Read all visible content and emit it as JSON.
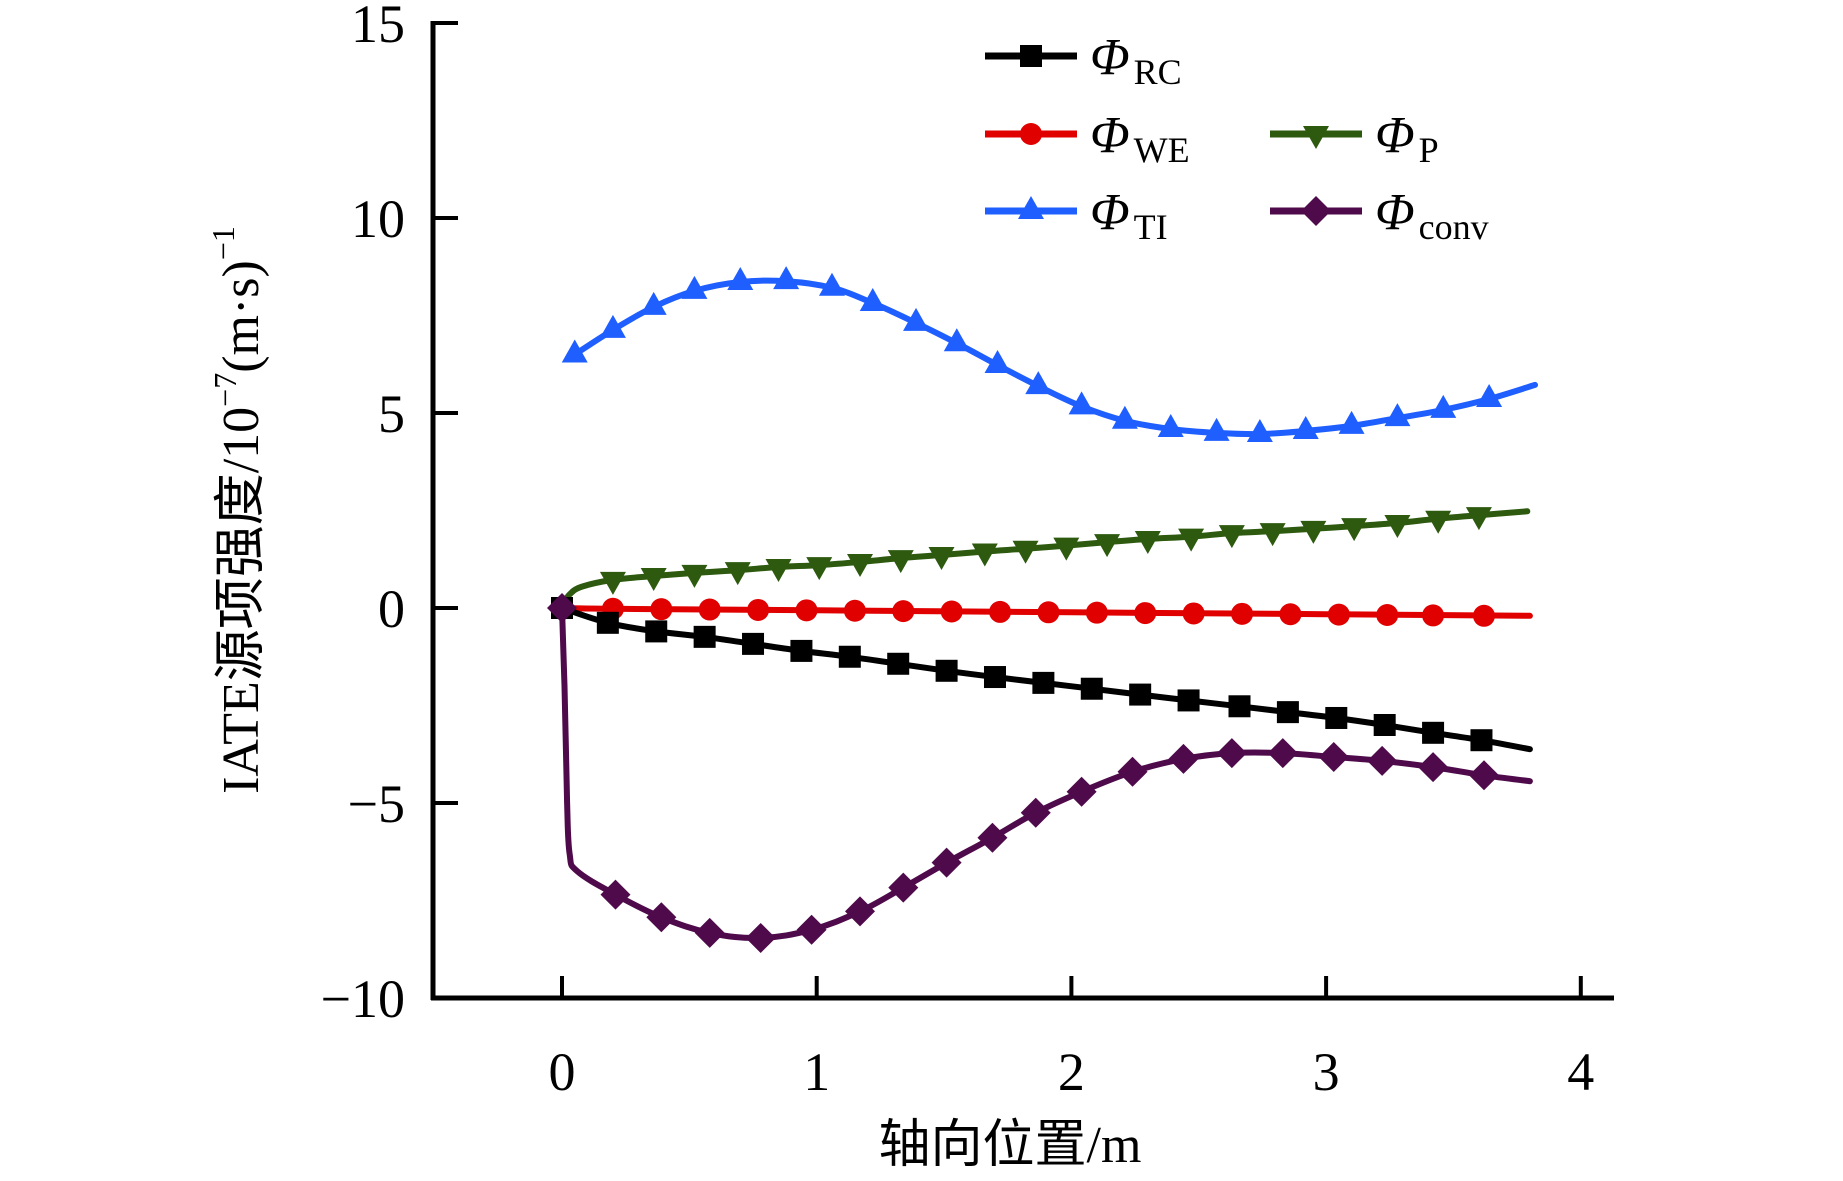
{
  "chart_data": {
    "type": "line",
    "title": "",
    "xlabel": "轴向位置/m",
    "ylabel": {
      "main": "IATE源项强度/10",
      "exponent": "−7",
      "unit": "(m·s)",
      "unit_exponent": "−1"
    },
    "xlim": [
      -0.5,
      4.13
    ],
    "ylim": [
      -10,
      15
    ],
    "xticks": [
      0,
      1,
      2,
      3,
      4
    ],
    "xtick_labels": [
      "0",
      "1",
      "2",
      "3",
      "4"
    ],
    "yticks": [
      15,
      10,
      5,
      0,
      -5,
      -10
    ],
    "ytick_labels": [
      "15",
      "10",
      "5",
      "0",
      "−5",
      "−10"
    ],
    "grid": false,
    "legend_placement": "top-right",
    "series": [
      {
        "name": "ΦRC",
        "symbol": "Φ",
        "subscript": "RC",
        "color": "#000000",
        "marker": "square",
        "line": [
          [
            0,
            0
          ],
          [
            0.18,
            -0.38
          ],
          [
            0.37,
            -0.6
          ],
          [
            0.56,
            -0.74
          ],
          [
            0.75,
            -0.92
          ],
          [
            0.94,
            -1.1
          ],
          [
            1.13,
            -1.25
          ],
          [
            1.32,
            -1.43
          ],
          [
            1.51,
            -1.61
          ],
          [
            1.7,
            -1.77
          ],
          [
            1.89,
            -1.92
          ],
          [
            2.08,
            -2.07
          ],
          [
            2.27,
            -2.22
          ],
          [
            2.46,
            -2.37
          ],
          [
            2.66,
            -2.52
          ],
          [
            2.85,
            -2.67
          ],
          [
            3.04,
            -2.82
          ],
          [
            3.23,
            -3.0
          ],
          [
            3.42,
            -3.2
          ],
          [
            3.61,
            -3.39
          ],
          [
            3.8,
            -3.62
          ]
        ],
        "markers": [
          [
            0,
            0
          ],
          [
            0.18,
            -0.38
          ],
          [
            0.37,
            -0.6
          ],
          [
            0.56,
            -0.74
          ],
          [
            0.75,
            -0.92
          ],
          [
            0.94,
            -1.1
          ],
          [
            1.13,
            -1.25
          ],
          [
            1.32,
            -1.43
          ],
          [
            1.51,
            -1.61
          ],
          [
            1.7,
            -1.77
          ],
          [
            1.89,
            -1.92
          ],
          [
            2.08,
            -2.07
          ],
          [
            2.27,
            -2.22
          ],
          [
            2.46,
            -2.37
          ],
          [
            2.66,
            -2.52
          ],
          [
            2.85,
            -2.67
          ],
          [
            3.04,
            -2.82
          ],
          [
            3.23,
            -3.0
          ],
          [
            3.42,
            -3.2
          ],
          [
            3.61,
            -3.39
          ]
        ]
      },
      {
        "name": "ΦWE",
        "symbol": "Φ",
        "subscript": "WE",
        "color": "#e00000",
        "marker": "circle",
        "line": [
          [
            0,
            0
          ],
          [
            0.2,
            -0.02
          ],
          [
            1.0,
            -0.06
          ],
          [
            2.0,
            -0.11
          ],
          [
            3.0,
            -0.16
          ],
          [
            3.8,
            -0.2
          ]
        ],
        "markers": [
          [
            0.2,
            -0.02
          ],
          [
            0.39,
            -0.03
          ],
          [
            0.58,
            -0.04
          ],
          [
            0.77,
            -0.05
          ],
          [
            0.96,
            -0.06
          ],
          [
            1.15,
            -0.07
          ],
          [
            1.34,
            -0.08
          ],
          [
            1.53,
            -0.09
          ],
          [
            1.72,
            -0.1
          ],
          [
            1.91,
            -0.11
          ],
          [
            2.1,
            -0.12
          ],
          [
            2.29,
            -0.13
          ],
          [
            2.48,
            -0.14
          ],
          [
            2.67,
            -0.15
          ],
          [
            2.86,
            -0.16
          ],
          [
            3.05,
            -0.17
          ],
          [
            3.24,
            -0.18
          ],
          [
            3.42,
            -0.19
          ],
          [
            3.62,
            -0.2
          ]
        ]
      },
      {
        "name": "ΦP",
        "symbol": "Φ",
        "subscript": "P",
        "color": "#2d5a0f",
        "marker": "triangle-down",
        "line": [
          [
            0,
            0.05
          ],
          [
            0.03,
            0.35
          ],
          [
            0.08,
            0.55
          ],
          [
            0.2,
            0.72
          ],
          [
            0.36,
            0.82
          ],
          [
            0.52,
            0.9
          ],
          [
            0.69,
            0.97
          ],
          [
            0.85,
            1.05
          ],
          [
            1.01,
            1.1
          ],
          [
            1.17,
            1.18
          ],
          [
            1.33,
            1.28
          ],
          [
            1.49,
            1.36
          ],
          [
            1.66,
            1.45
          ],
          [
            1.82,
            1.52
          ],
          [
            1.98,
            1.6
          ],
          [
            2.14,
            1.69
          ],
          [
            2.3,
            1.77
          ],
          [
            2.47,
            1.83
          ],
          [
            2.63,
            1.92
          ],
          [
            2.79,
            1.97
          ],
          [
            2.95,
            2.03
          ],
          [
            3.11,
            2.1
          ],
          [
            3.28,
            2.18
          ],
          [
            3.44,
            2.29
          ],
          [
            3.6,
            2.38
          ],
          [
            3.79,
            2.48
          ]
        ],
        "markers": [
          [
            0.2,
            0.72
          ],
          [
            0.36,
            0.82
          ],
          [
            0.52,
            0.9
          ],
          [
            0.69,
            0.97
          ],
          [
            0.85,
            1.05
          ],
          [
            1.01,
            1.1
          ],
          [
            1.17,
            1.18
          ],
          [
            1.33,
            1.28
          ],
          [
            1.49,
            1.36
          ],
          [
            1.66,
            1.45
          ],
          [
            1.82,
            1.52
          ],
          [
            1.98,
            1.6
          ],
          [
            2.14,
            1.69
          ],
          [
            2.3,
            1.77
          ],
          [
            2.47,
            1.83
          ],
          [
            2.63,
            1.92
          ],
          [
            2.79,
            1.97
          ],
          [
            2.95,
            2.03
          ],
          [
            3.11,
            2.1
          ],
          [
            3.28,
            2.18
          ],
          [
            3.44,
            2.29
          ],
          [
            3.6,
            2.38
          ]
        ]
      },
      {
        "name": "ΦTI",
        "symbol": "Φ",
        "subscript": "TI",
        "color": "#1f5fff",
        "marker": "triangle-up",
        "line": [
          [
            0.05,
            6.5
          ],
          [
            0.2,
            7.13
          ],
          [
            0.36,
            7.72
          ],
          [
            0.52,
            8.13
          ],
          [
            0.7,
            8.36
          ],
          [
            0.88,
            8.38
          ],
          [
            1.06,
            8.21
          ],
          [
            1.22,
            7.82
          ],
          [
            1.39,
            7.31
          ],
          [
            1.55,
            6.79
          ],
          [
            1.71,
            6.23
          ],
          [
            1.87,
            5.69
          ],
          [
            2.04,
            5.17
          ],
          [
            2.21,
            4.8
          ],
          [
            2.39,
            4.59
          ],
          [
            2.57,
            4.49
          ],
          [
            2.74,
            4.46
          ],
          [
            2.92,
            4.54
          ],
          [
            3.1,
            4.67
          ],
          [
            3.28,
            4.87
          ],
          [
            3.46,
            5.08
          ],
          [
            3.64,
            5.36
          ],
          [
            3.82,
            5.72
          ]
        ],
        "markers": [
          [
            0.05,
            6.5
          ],
          [
            0.2,
            7.13
          ],
          [
            0.36,
            7.72
          ],
          [
            0.52,
            8.13
          ],
          [
            0.7,
            8.36
          ],
          [
            0.88,
            8.38
          ],
          [
            1.06,
            8.21
          ],
          [
            1.22,
            7.82
          ],
          [
            1.39,
            7.31
          ],
          [
            1.55,
            6.79
          ],
          [
            1.71,
            6.23
          ],
          [
            1.87,
            5.69
          ],
          [
            2.04,
            5.17
          ],
          [
            2.21,
            4.8
          ],
          [
            2.39,
            4.59
          ],
          [
            2.57,
            4.49
          ],
          [
            2.74,
            4.46
          ],
          [
            2.92,
            4.54
          ],
          [
            3.1,
            4.67
          ],
          [
            3.28,
            4.87
          ],
          [
            3.46,
            5.08
          ],
          [
            3.64,
            5.36
          ]
        ]
      },
      {
        "name": "Φconv",
        "symbol": "Φ",
        "subscript": "conv",
        "color": "#4e0a4a",
        "marker": "diamond",
        "line": [
          [
            0,
            0
          ],
          [
            0.01,
            -2.0
          ],
          [
            0.02,
            -5.0
          ],
          [
            0.03,
            -6.3
          ],
          [
            0.06,
            -6.75
          ],
          [
            0.21,
            -7.35
          ],
          [
            0.39,
            -7.93
          ],
          [
            0.58,
            -8.33
          ],
          [
            0.78,
            -8.46
          ],
          [
            0.98,
            -8.25
          ],
          [
            1.17,
            -7.78
          ],
          [
            1.34,
            -7.17
          ],
          [
            1.51,
            -6.53
          ],
          [
            1.69,
            -5.89
          ],
          [
            1.86,
            -5.25
          ],
          [
            2.04,
            -4.71
          ],
          [
            2.24,
            -4.2
          ],
          [
            2.44,
            -3.87
          ],
          [
            2.63,
            -3.72
          ],
          [
            2.83,
            -3.72
          ],
          [
            3.03,
            -3.82
          ],
          [
            3.22,
            -3.92
          ],
          [
            3.42,
            -4.08
          ],
          [
            3.62,
            -4.29
          ],
          [
            3.8,
            -4.44
          ]
        ],
        "markers": [
          [
            0,
            0
          ],
          [
            0.21,
            -7.35
          ],
          [
            0.39,
            -7.93
          ],
          [
            0.58,
            -8.33
          ],
          [
            0.78,
            -8.46
          ],
          [
            0.98,
            -8.25
          ],
          [
            1.17,
            -7.78
          ],
          [
            1.34,
            -7.17
          ],
          [
            1.51,
            -6.53
          ],
          [
            1.69,
            -5.89
          ],
          [
            1.86,
            -5.25
          ],
          [
            2.04,
            -4.71
          ],
          [
            2.24,
            -4.2
          ],
          [
            2.44,
            -3.87
          ],
          [
            2.63,
            -3.72
          ],
          [
            2.83,
            -3.72
          ],
          [
            3.03,
            -3.82
          ],
          [
            3.22,
            -3.92
          ],
          [
            3.42,
            -4.08
          ],
          [
            3.62,
            -4.29
          ]
        ]
      }
    ]
  }
}
